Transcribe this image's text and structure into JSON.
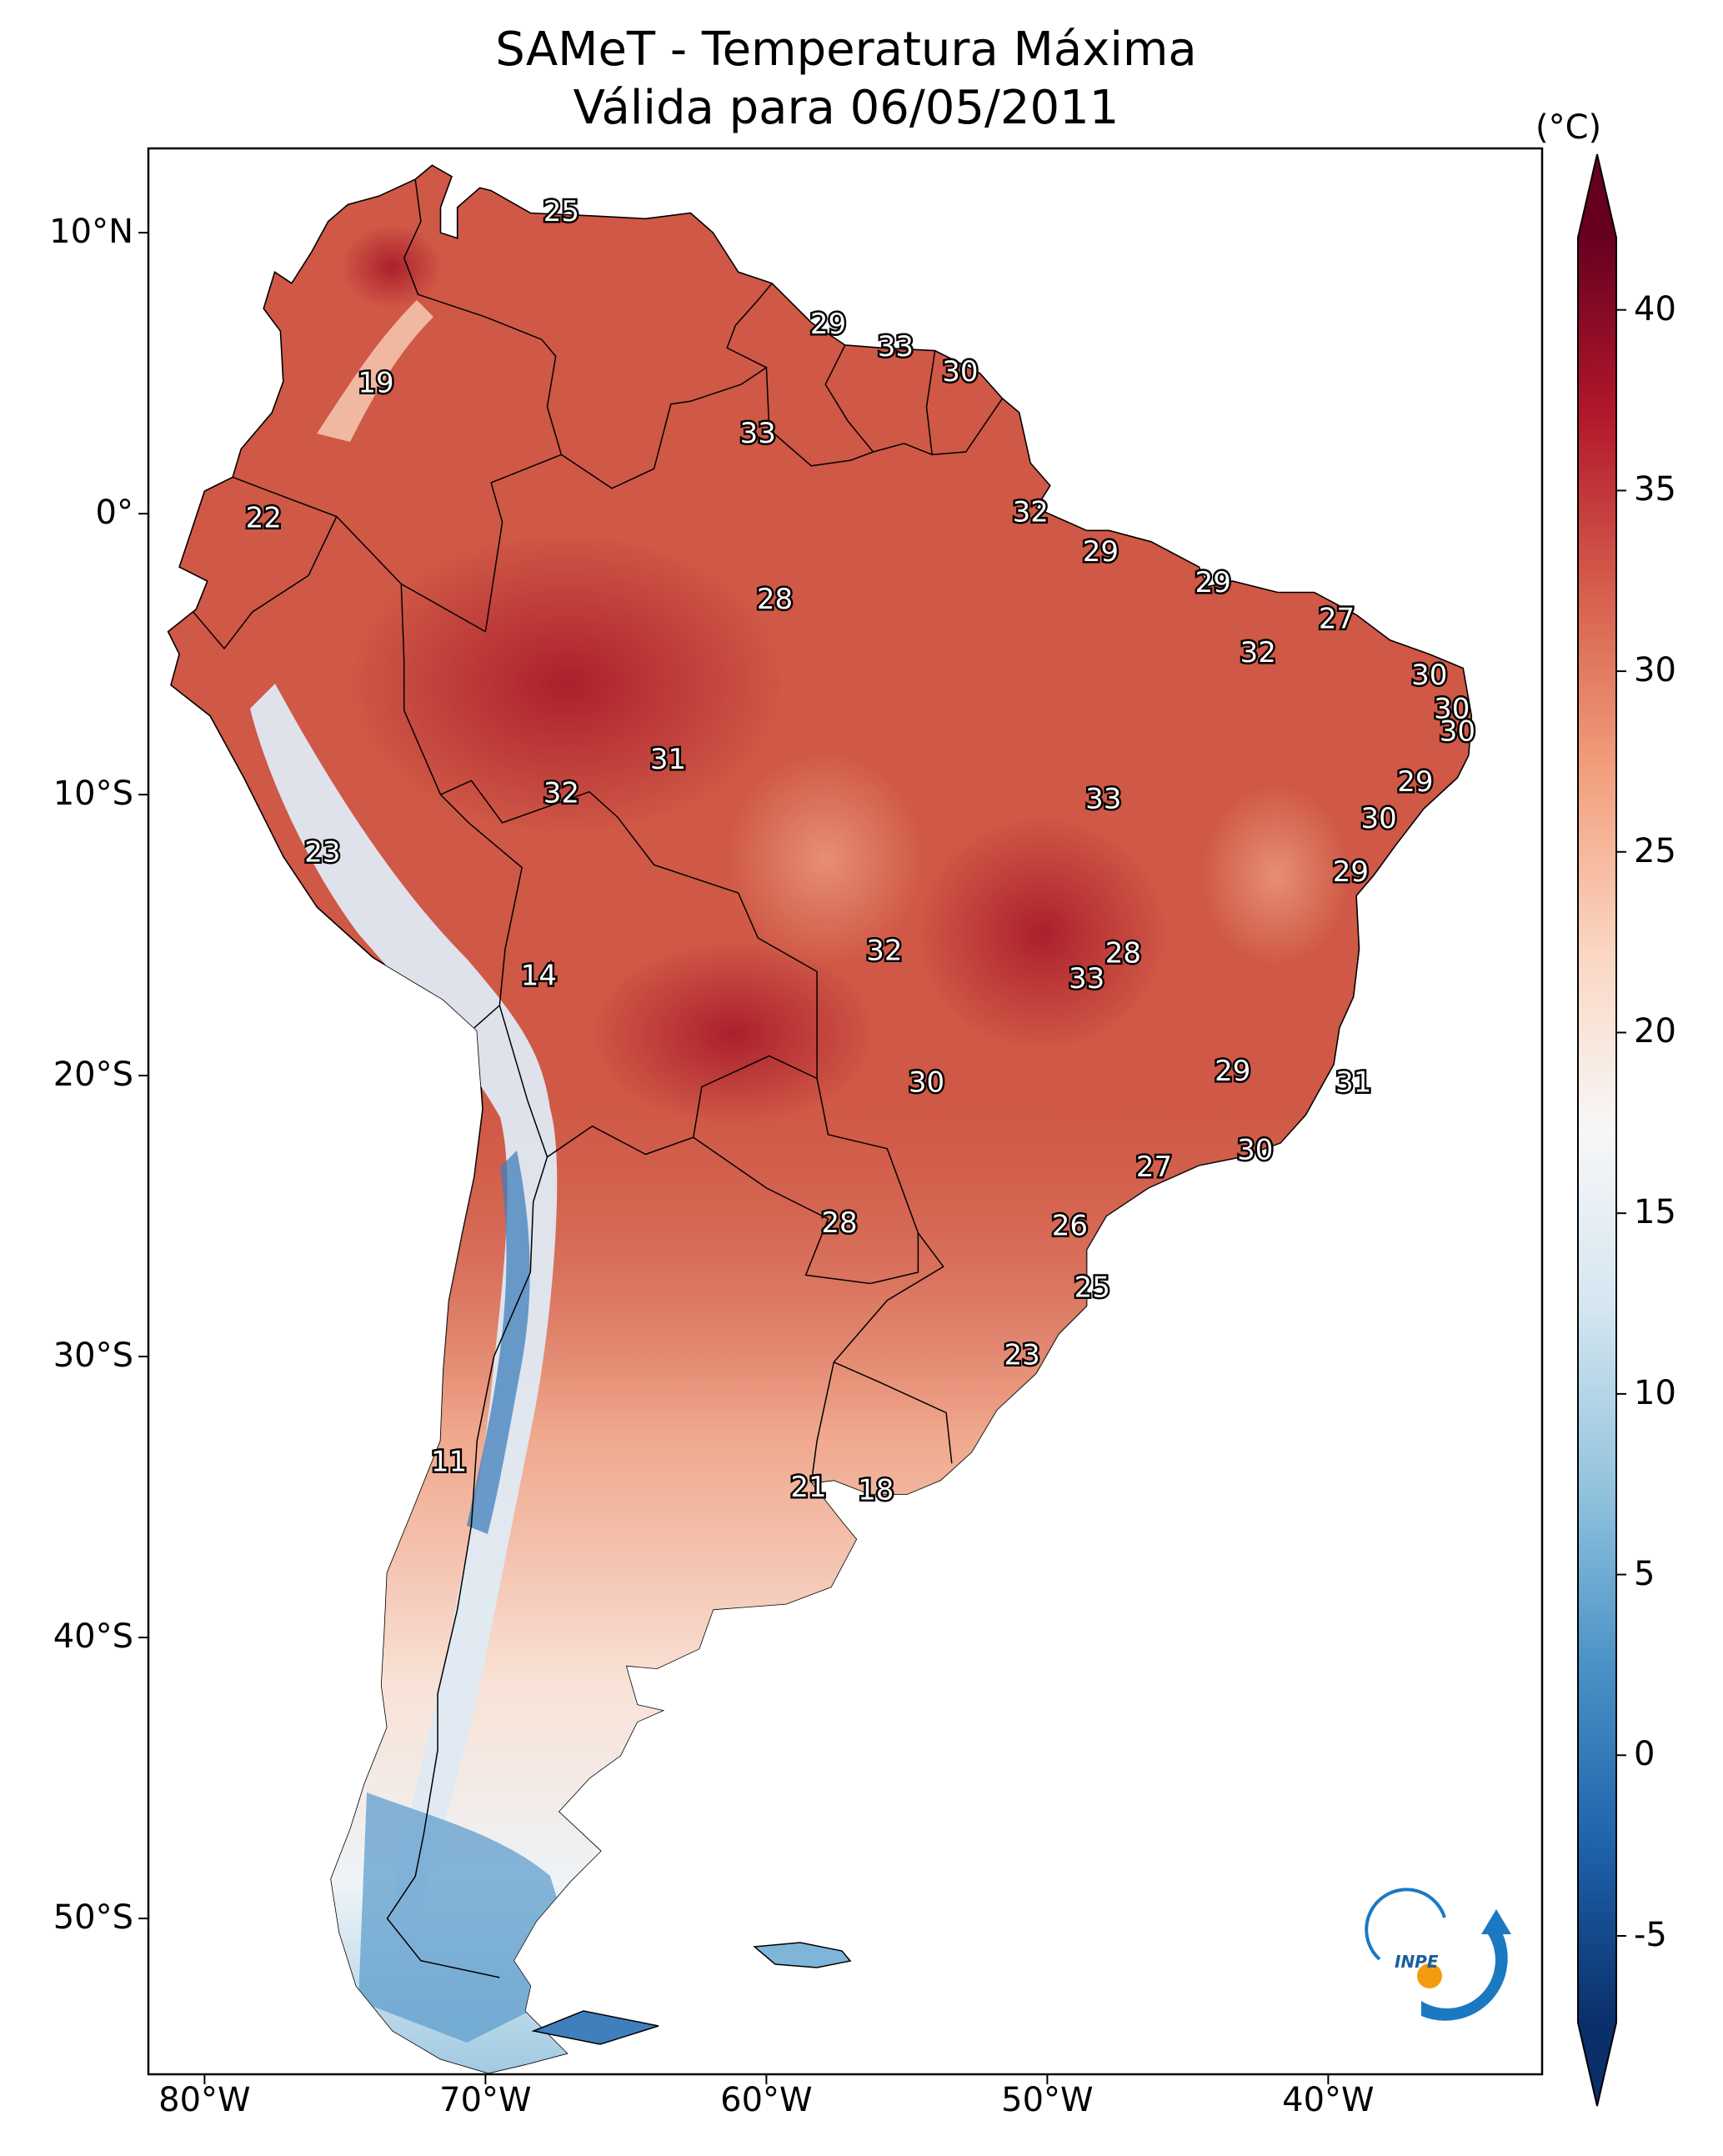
{
  "title_line1": "SAMeT - Temperatura Máxima",
  "title_line2": "Válida para 06/05/2011",
  "colorbar": {
    "unit": "(°C)",
    "ticks": [
      "40",
      "35",
      "30",
      "25",
      "20",
      "15",
      "10",
      "5",
      "0",
      "-5"
    ],
    "colors_low_to_high": [
      "#0a2f6b",
      "#1f63ab",
      "#4a92c6",
      "#93c4de",
      "#d4e6f1",
      "#f7f7f7",
      "#fbd6c2",
      "#f2a07e",
      "#d6604d",
      "#b2182b",
      "#67001f"
    ]
  },
  "axes": {
    "lon_labels": [
      "80°W",
      "70°W",
      "60°W",
      "50°W",
      "40°W"
    ],
    "lat_labels": [
      "10°N",
      "0°",
      "10°S",
      "20°S",
      "30°S",
      "40°S",
      "50°S"
    ]
  },
  "logo_text": "INPE",
  "temperature_labels": [
    {
      "value": "25",
      "lon": -67.3,
      "lat": 10.7
    },
    {
      "value": "19",
      "lon": -73.9,
      "lat": 4.6
    },
    {
      "value": "29",
      "lon": -57.8,
      "lat": 6.7
    },
    {
      "value": "33",
      "lon": -55.4,
      "lat": 5.9
    },
    {
      "value": "30",
      "lon": -53.1,
      "lat": 5.0
    },
    {
      "value": "33",
      "lon": -60.3,
      "lat": 2.8
    },
    {
      "value": "22",
      "lon": -77.9,
      "lat": -0.2
    },
    {
      "value": "32",
      "lon": -50.6,
      "lat": -0.0
    },
    {
      "value": "29",
      "lon": -48.1,
      "lat": -1.4
    },
    {
      "value": "28",
      "lon": -59.7,
      "lat": -3.1
    },
    {
      "value": "29",
      "lon": -44.1,
      "lat": -2.5
    },
    {
      "value": "27",
      "lon": -39.7,
      "lat": -3.8
    },
    {
      "value": "32",
      "lon": -42.5,
      "lat": -5.0
    },
    {
      "value": "30",
      "lon": -36.4,
      "lat": -5.8
    },
    {
      "value": "30",
      "lon": -35.6,
      "lat": -7.0
    },
    {
      "value": "30",
      "lon": -35.4,
      "lat": -7.8
    },
    {
      "value": "31",
      "lon": -63.5,
      "lat": -8.8
    },
    {
      "value": "32",
      "lon": -67.3,
      "lat": -10.0
    },
    {
      "value": "33",
      "lon": -48.0,
      "lat": -10.2
    },
    {
      "value": "29",
      "lon": -36.9,
      "lat": -9.6
    },
    {
      "value": "30",
      "lon": -38.2,
      "lat": -10.9
    },
    {
      "value": "23",
      "lon": -75.8,
      "lat": -12.1
    },
    {
      "value": "29",
      "lon": -39.2,
      "lat": -12.8
    },
    {
      "value": "14",
      "lon": -68.1,
      "lat": -16.5
    },
    {
      "value": "32",
      "lon": -55.8,
      "lat": -15.6
    },
    {
      "value": "28",
      "lon": -47.3,
      "lat": -15.7
    },
    {
      "value": "33",
      "lon": -48.6,
      "lat": -16.6
    },
    {
      "value": "30",
      "lon": -54.3,
      "lat": -20.3
    },
    {
      "value": "29",
      "lon": -43.4,
      "lat": -19.9
    },
    {
      "value": "31",
      "lon": -39.1,
      "lat": -20.3
    },
    {
      "value": "30",
      "lon": -42.6,
      "lat": -22.7
    },
    {
      "value": "27",
      "lon": -46.2,
      "lat": -23.3
    },
    {
      "value": "28",
      "lon": -57.4,
      "lat": -25.3
    },
    {
      "value": "26",
      "lon": -49.2,
      "lat": -25.4
    },
    {
      "value": "25",
      "lon": -48.4,
      "lat": -27.6
    },
    {
      "value": "23",
      "lon": -50.9,
      "lat": -30.0
    },
    {
      "value": "11",
      "lon": -71.3,
      "lat": -33.8
    },
    {
      "value": "21",
      "lon": -58.5,
      "lat": -34.7
    },
    {
      "value": "18",
      "lon": -56.1,
      "lat": -34.8
    }
  ]
}
